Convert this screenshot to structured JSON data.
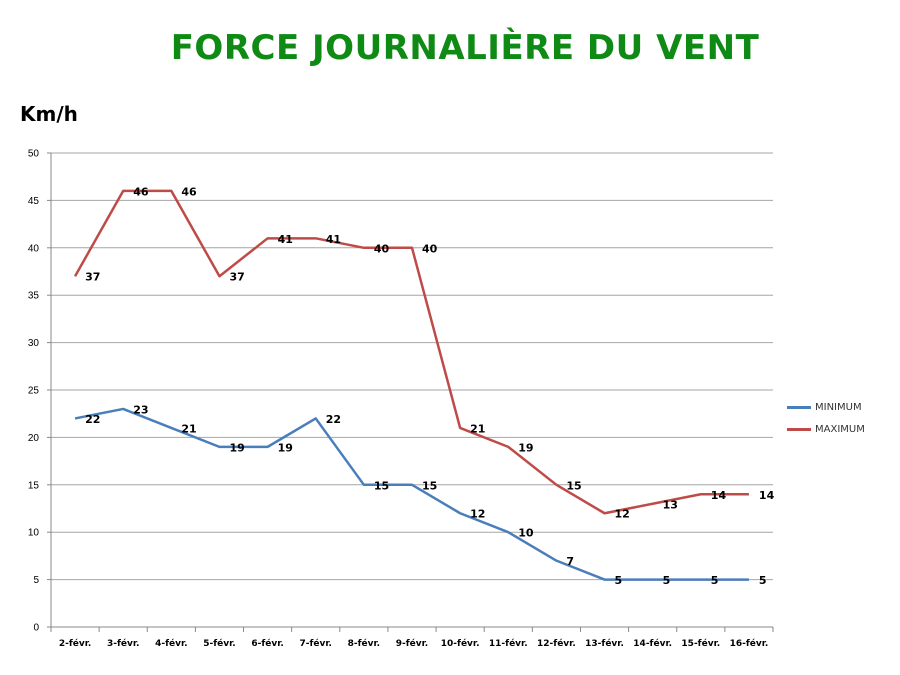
{
  "title": "FORCE JOURNALIÈRE DU VENT",
  "unit_label": "Km/h",
  "chart_data": {
    "type": "line",
    "title": "FORCE JOURNALIÈRE DU VENT",
    "ylabel": "Km/h",
    "xlabel": "",
    "ylim": [
      0,
      50
    ],
    "yticks": [
      0,
      5,
      10,
      15,
      20,
      25,
      30,
      35,
      40,
      45,
      50
    ],
    "grid": true,
    "legend_position": "right",
    "categories": [
      "2-févr.",
      "3-févr.",
      "4-févr.",
      "5-févr.",
      "6-févr.",
      "7-févr.",
      "8-févr.",
      "9-févr.",
      "10-févr.",
      "11-févr.",
      "12-févr.",
      "13-févr.",
      "14-févr.",
      "15-févr.",
      "16-févr."
    ],
    "series": [
      {
        "name": "MINIMUM",
        "color": "#4a7ebb",
        "values": [
          22,
          23,
          21,
          19,
          19,
          22,
          15,
          15,
          12,
          10,
          7,
          5,
          5,
          5,
          5
        ]
      },
      {
        "name": "MAXIMUM",
        "color": "#be4b48",
        "values": [
          37,
          46,
          46,
          37,
          41,
          41,
          40,
          40,
          21,
          19,
          15,
          12,
          13,
          14,
          14
        ]
      }
    ]
  }
}
